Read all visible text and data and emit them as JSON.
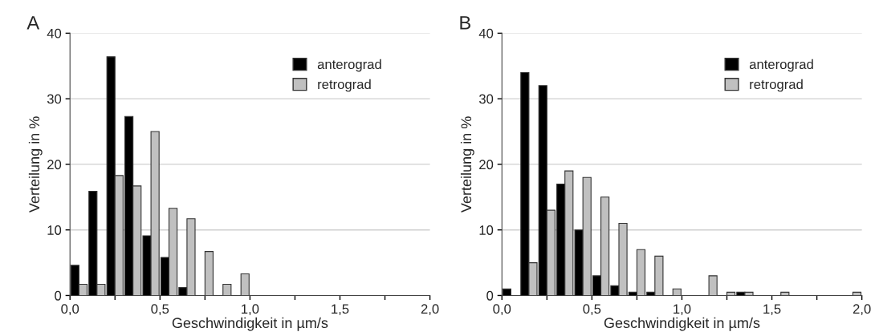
{
  "chart_data": [
    {
      "type": "bar",
      "title": "A",
      "xlabel": "Geschwindigkeit in µm/s",
      "ylabel": "Verteilung in %",
      "x": [
        0.05,
        0.15,
        0.25,
        0.35,
        0.45,
        0.55,
        0.65,
        0.75,
        0.85,
        0.95,
        1.05,
        1.15,
        1.25,
        1.35,
        1.45,
        1.55,
        1.65,
        1.75,
        1.85,
        1.95
      ],
      "series": [
        {
          "name": "anterograd",
          "color": "#000000",
          "values": [
            4.6,
            15.9,
            36.4,
            27.3,
            9.1,
            5.8,
            1.2,
            0,
            0,
            0,
            0,
            0,
            0,
            0,
            0,
            0,
            0,
            0,
            0,
            0
          ]
        },
        {
          "name": "retrograd",
          "color": "#c0c0c0",
          "values": [
            1.7,
            1.7,
            18.3,
            16.7,
            25.0,
            13.3,
            11.7,
            6.7,
            1.7,
            3.3,
            0,
            0,
            0,
            0,
            0,
            0,
            0,
            0,
            0,
            0
          ]
        }
      ],
      "xlim": [
        0,
        2.0
      ],
      "xticks": [
        {
          "value": 0,
          "label": "0,0"
        },
        {
          "value": 0.25,
          "label": null
        },
        {
          "value": 0.5,
          "label": "0,5"
        },
        {
          "value": 0.75,
          "label": null
        },
        {
          "value": 1.0,
          "label": "1,0"
        },
        {
          "value": 1.25,
          "label": null
        },
        {
          "value": 1.5,
          "label": "1,5"
        },
        {
          "value": 1.75,
          "label": null
        },
        {
          "value": 2.0,
          "label": "2,0"
        }
      ],
      "ylim": [
        0,
        40
      ],
      "yticks": [
        0,
        10,
        20,
        30,
        40
      ],
      "grid": "y",
      "legend": "top right"
    },
    {
      "type": "bar",
      "title": "B",
      "xlabel": "Geschwindigkeit in µm/s",
      "ylabel": "Verteilung in %",
      "x": [
        0.05,
        0.15,
        0.25,
        0.35,
        0.45,
        0.55,
        0.65,
        0.75,
        0.85,
        0.95,
        1.05,
        1.15,
        1.25,
        1.35,
        1.45,
        1.55,
        1.65,
        1.75,
        1.85,
        1.95
      ],
      "series": [
        {
          "name": "anterograd",
          "color": "#000000",
          "values": [
            1,
            34,
            32,
            17,
            10,
            3,
            1.5,
            0.5,
            0.5,
            0,
            0,
            0,
            0,
            0.5,
            0,
            0,
            0,
            0,
            0,
            0
          ]
        },
        {
          "name": "retrograd",
          "color": "#c0c0c0",
          "values": [
            0,
            5,
            13,
            19,
            18,
            15,
            11,
            7,
            6,
            1,
            0,
            3,
            0.5,
            0.5,
            0,
            0.5,
            0,
            0,
            0,
            0.5
          ]
        }
      ],
      "xlim": [
        0,
        2.0
      ],
      "xticks": [
        {
          "value": 0,
          "label": "0,0"
        },
        {
          "value": 0.25,
          "label": null
        },
        {
          "value": 0.5,
          "label": "0,5"
        },
        {
          "value": 0.75,
          "label": null
        },
        {
          "value": 1.0,
          "label": "1,0"
        },
        {
          "value": 1.25,
          "label": null
        },
        {
          "value": 1.5,
          "label": "1,5"
        },
        {
          "value": 1.75,
          "label": null
        },
        {
          "value": 2.0,
          "label": "2,0"
        }
      ],
      "ylim": [
        0,
        40
      ],
      "yticks": [
        0,
        10,
        20,
        30,
        40
      ],
      "grid": "y",
      "legend": "top right"
    }
  ]
}
